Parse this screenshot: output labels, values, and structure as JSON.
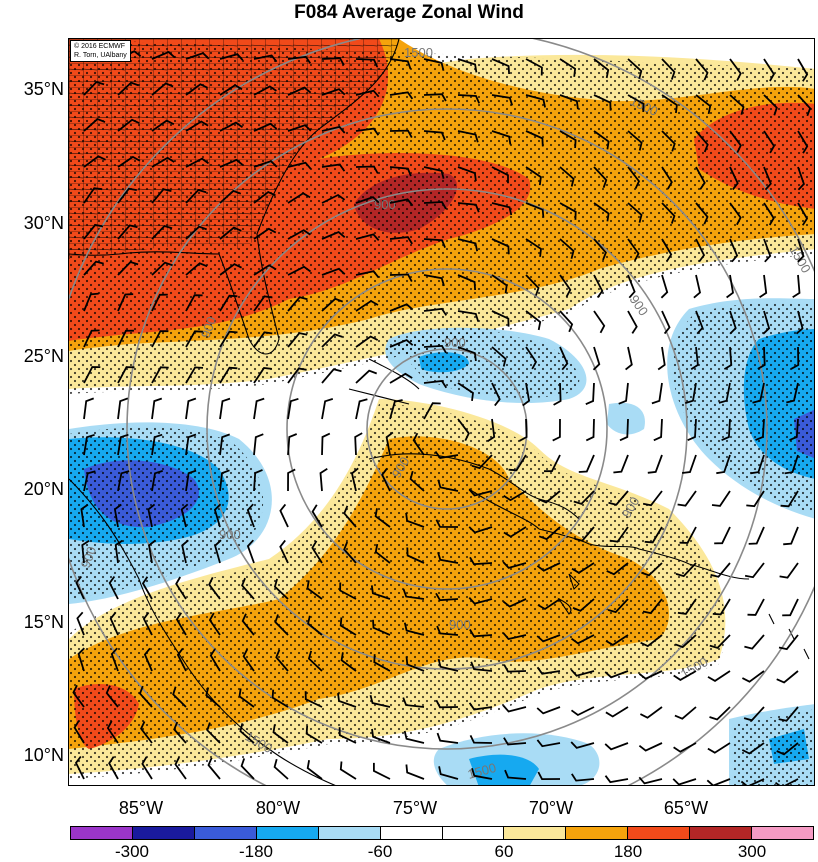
{
  "title": "F084 Average Zonal Wind",
  "credit": [
    "© 2016 ECMWF",
    "R. Torn, UAlbany"
  ],
  "lat_labels": [
    "35°N",
    "30°N",
    "25°N",
    "20°N",
    "15°N",
    "10°N"
  ],
  "lon_labels": [
    "85°W",
    "80°W",
    "75°W",
    "70°W",
    "65°W"
  ],
  "colorbar_labels": [
    "-300",
    "-180",
    "-60",
    "60",
    "180",
    "300"
  ],
  "colorbar_colors": [
    "#9b35c9",
    "#1a1a9e",
    "#3a5bd9",
    "#16a9f0",
    "#a9dcf5",
    "#ffffff",
    "#ffffff",
    "#fbe89a",
    "#f5a30c",
    "#f14a1a",
    "#b32626",
    "#f59bc4"
  ],
  "contour_labels": [
    "1500",
    "1500",
    "1500",
    "1500",
    "900",
    "900",
    "900",
    "900",
    "900",
    "900",
    "900",
    "900",
    "900",
    "1500",
    "1500"
  ],
  "colors": {
    "light_blue": "#a9dcf5",
    "blue": "#16a9f0",
    "dark_blue": "#3a5bd9",
    "yellow": "#fbe89a",
    "orange": "#f5a30c",
    "red_orange": "#f14a1a",
    "dark_red": "#b32626"
  }
}
